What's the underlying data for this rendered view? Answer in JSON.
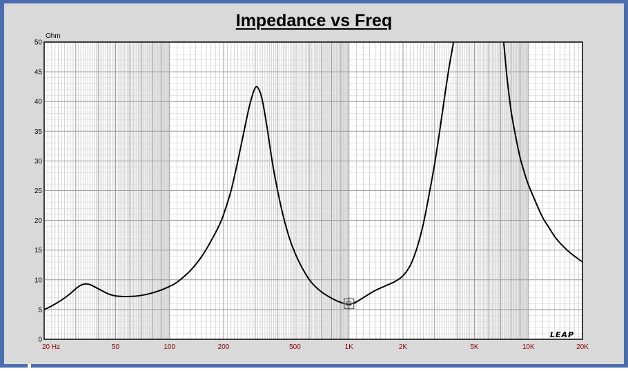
{
  "chart_data": {
    "type": "line",
    "title": "Impedance vs Freq",
    "ylabel": "Ohm",
    "xscale": "log",
    "xlim": [
      20,
      20000
    ],
    "ylim": [
      0,
      50
    ],
    "grid": true,
    "yticks": [
      "0",
      "5",
      "10",
      "15",
      "20",
      "25",
      "30",
      "35",
      "40",
      "45",
      "50"
    ],
    "xticks": [
      {
        "value": 20,
        "label": "20  Hz"
      },
      {
        "value": 50,
        "label": "50"
      },
      {
        "value": 100,
        "label": "100"
      },
      {
        "value": 200,
        "label": "200"
      },
      {
        "value": 500,
        "label": "500"
      },
      {
        "value": 1000,
        "label": "1K"
      },
      {
        "value": 2000,
        "label": "2K"
      },
      {
        "value": 5000,
        "label": "5K"
      },
      {
        "value": 10000,
        "label": "10K"
      },
      {
        "value": 20000,
        "label": "20K"
      }
    ],
    "cursor": {
      "x": 1000,
      "y": 6
    },
    "series": [
      {
        "color": "#000000",
        "x": [
          20,
          22,
          25,
          28,
          30,
          32,
          34,
          36,
          40,
          45,
          50,
          60,
          70,
          80,
          90,
          100,
          110,
          130,
          150,
          170,
          190,
          200,
          220,
          240,
          260,
          280,
          300,
          315,
          330,
          350,
          380,
          420,
          460,
          500,
          560,
          620,
          700,
          800,
          900,
          1000,
          1100,
          1200,
          1400,
          1600,
          1800,
          2000,
          2200,
          2400,
          2600,
          2800,
          3000,
          3200,
          3400,
          3600,
          3800,
          3950,
          7100,
          7300,
          7600,
          8000,
          8500,
          9000,
          9500,
          10000,
          11000,
          12000,
          13000,
          14000,
          15000,
          17000,
          20000
        ],
        "y": [
          5.0,
          5.6,
          6.6,
          7.7,
          8.5,
          9.1,
          9.3,
          9.2,
          8.5,
          7.7,
          7.3,
          7.2,
          7.4,
          7.8,
          8.3,
          8.9,
          9.6,
          11.5,
          13.8,
          16.5,
          19.3,
          21.0,
          25.0,
          30.0,
          35.0,
          39.5,
          42.3,
          42.0,
          40.0,
          35.5,
          28.5,
          22.0,
          17.5,
          14.5,
          11.5,
          9.5,
          8.0,
          6.9,
          6.2,
          5.9,
          6.3,
          7.0,
          8.2,
          9.0,
          9.7,
          10.7,
          12.5,
          15.5,
          19.5,
          24.5,
          29.5,
          35.0,
          40.5,
          45.5,
          49.5,
          52.0,
          52.0,
          49.5,
          44.0,
          38.5,
          34.0,
          30.5,
          28.0,
          26.0,
          23.0,
          20.5,
          18.8,
          17.3,
          16.2,
          14.6,
          13.0
        ]
      }
    ]
  },
  "logo_text": "LEAP"
}
